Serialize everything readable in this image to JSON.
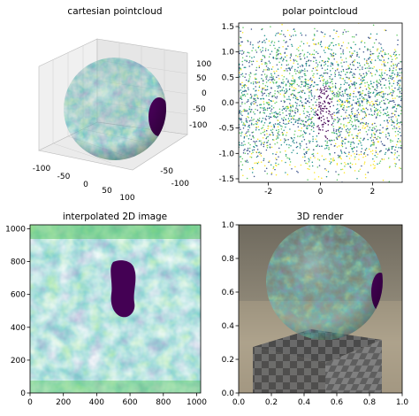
{
  "chart_data": [
    {
      "type": "scatter",
      "title": "cartesian pointcloud",
      "projection": "3d",
      "x_ticks": [
        -100,
        -50,
        0,
        50,
        100
      ],
      "y_ticks": [
        100,
        50,
        0,
        -50,
        -100
      ],
      "z_ticks": [
        100,
        50,
        0,
        -50,
        -100
      ],
      "xlim": [
        -100,
        100
      ],
      "ylim": [
        -100,
        100
      ],
      "zlim": [
        -100,
        100
      ],
      "colormap": "viridis"
    },
    {
      "type": "scatter",
      "title": "polar pointcloud",
      "x_ticks": [
        -2,
        0,
        2
      ],
      "y_ticks": [
        1.5,
        1.0,
        0.5,
        0.0,
        -0.5,
        -1.0,
        -1.5
      ],
      "xlim": [
        -3.14,
        3.14
      ],
      "ylim": [
        -1.57,
        1.57
      ],
      "colormap": "viridis"
    },
    {
      "type": "heatmap",
      "title": "interpolated 2D image",
      "x_ticks": [
        0,
        200,
        400,
        600,
        800,
        1000
      ],
      "y_ticks": [
        0,
        200,
        400,
        600,
        800,
        1000
      ],
      "xlim": [
        0,
        1024
      ],
      "ylim": [
        1024,
        0
      ],
      "colormap": "viridis"
    },
    {
      "type": "other",
      "title": "3D render",
      "x_ticks": [
        0.0,
        0.2,
        0.4,
        0.6,
        0.8,
        1.0
      ],
      "y_ticks": [
        1.0,
        0.8,
        0.6,
        0.4,
        0.2,
        0.0
      ],
      "xlim": [
        0,
        1
      ],
      "ylim": [
        0,
        1
      ]
    }
  ],
  "colors": {
    "viridis_dark": "#440154",
    "viridis_blue": "#3b528b",
    "viridis_teal": "#21918c",
    "viridis_green": "#5ec962",
    "viridis_yellow": "#fde725"
  }
}
